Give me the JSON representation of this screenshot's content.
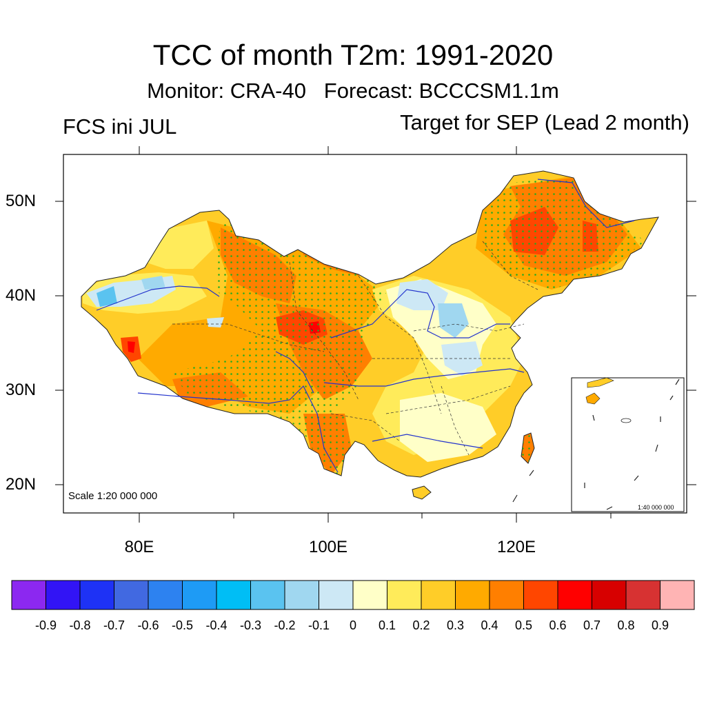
{
  "header": {
    "title": "TCC of month T2m: 1991-2020",
    "subtitle": "Monitor: CRA-40   Forecast: BCCCSM1.1m",
    "left_label": "FCS ini JUL",
    "right_label": "Target for SEP (Lead 2 month)"
  },
  "map": {
    "scale_main": "Scale 1:20 000 000",
    "scale_inset": "1:40 000 000",
    "lat_labels": [
      "50N",
      "40N",
      "30N",
      "20N"
    ],
    "lon_labels": [
      "80E",
      "100E",
      "120E"
    ]
  },
  "colorbar": {
    "colors": [
      "#8c28f0",
      "#3214f5",
      "#1e32f5",
      "#4169e1",
      "#2d82f0",
      "#1e9bf5",
      "#00bef5",
      "#5ac3f0",
      "#a0d7f0",
      "#cde8f5",
      "#ffffc8",
      "#ffeb5a",
      "#ffcd28",
      "#ffaa00",
      "#ff7f00",
      "#ff4600",
      "#ff0000",
      "#d70000",
      "#d73232",
      "#ffb4b4"
    ],
    "labels": [
      "-0.9",
      "-0.8",
      "-0.7",
      "-0.6",
      "-0.5",
      "-0.4",
      "-0.3",
      "-0.2",
      "-0.1",
      "0",
      "0.1",
      "0.2",
      "0.3",
      "0.4",
      "0.5",
      "0.6",
      "0.7",
      "0.8",
      "0.9"
    ]
  },
  "chart_data": {
    "type": "heatmap",
    "title": "TCC of month T2m: 1991-2020",
    "colorbar_range": [
      -1.0,
      1.0
    ],
    "lat_range": [
      17,
      55
    ],
    "lon_range": [
      72,
      138
    ]
  }
}
